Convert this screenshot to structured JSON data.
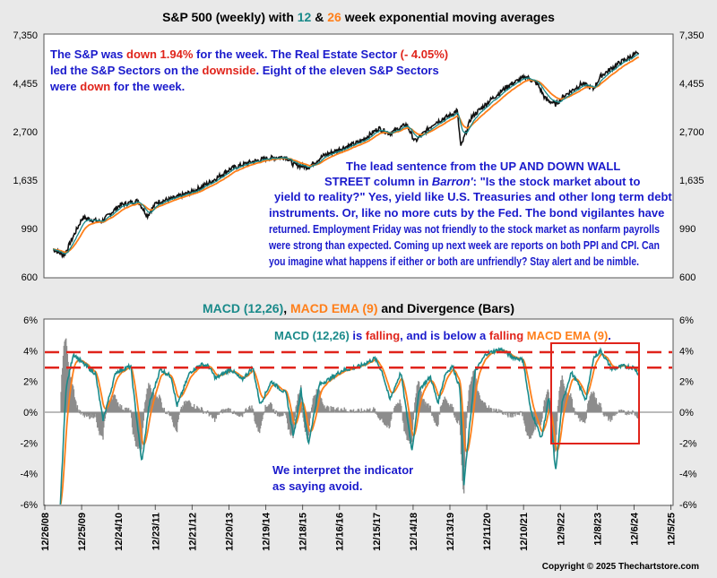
{
  "colors": {
    "ema12": "#1a8a8a",
    "ema26": "#ff7f1a",
    "price": "#111111",
    "highlight_red": "#e0241b",
    "annotation_blue": "#1a1acc",
    "bars": "#8c8c8c",
    "background": "#e9e9e9",
    "panel": "#ffffff"
  },
  "top_title": {
    "part1": "S&P 500 (weekly) with ",
    "n12": "12",
    "part2": " & ",
    "n26": "26",
    "part3": " week exponential moving averages"
  },
  "ann1": {
    "line1_a": "The S&P was ",
    "line1_b": "down 1.94%",
    "line1_c": " for the week. The Real Estate Sector ",
    "line1_d": "(- 4.05%)",
    "line2_a": "led the S&P Sectors on the ",
    "line2_b": "downside",
    "line2_c": ".  Eight of the eleven S&P Sectors",
    "line3_a": "were ",
    "line3_b": "down",
    "line3_c": " for the week."
  },
  "ann2": {
    "line1": "The lead sentence from the UP AND DOWN WALL",
    "line2_a": "STREET column in ",
    "line2_b": "Barron'",
    "line2_c": ": \"Is the stock market about to",
    "line3": "yield to reality?\"  Yes, yield like U.S. Treasuries and other long term debt",
    "line4": "instruments.  Or, like no more cuts by the Fed.  The bond vigilantes have",
    "line5": "returned.  Employment Friday was not friendly to the stock market as nonfarm payrolls",
    "line6": "were strong than expected.  Coming up next week are reports on both PPI and CPI.  Can",
    "line7": "you imagine what happens if either or both are unfriendly?  Stay alert and be nimble."
  },
  "bottom_title": {
    "part1": "MACD (12,26)",
    "part2": ", ",
    "part3": "MACD EMA (9)",
    "part4": " and Divergence (Bars)"
  },
  "ann3": {
    "part1": "MACD (12,26)",
    "part2": " is ",
    "part3": "falling",
    "part4": ", and is below a ",
    "part5": "falling",
    "part6": " ",
    "part7": "MACD EMA (9)",
    "part8": "."
  },
  "ann4": {
    "line1": "We interpret the indicator",
    "line2": "as saying avoid."
  },
  "copyright": "Copyright © 2025 Thechartstore.com",
  "chart_data": [
    {
      "type": "line",
      "title": "S&P 500 (weekly) with 12 & 26 week exponential moving averages",
      "y_scale": "log",
      "ylim": [
        600,
        7350
      ],
      "yticks": [
        600,
        990,
        1635,
        2700,
        4455,
        7350
      ],
      "ytick_labels": [
        "600",
        "990",
        "1,635",
        "2,700",
        "4,455",
        "7,350"
      ],
      "series": [
        {
          "name": "S&P 500",
          "x": [
            2009.2,
            2009.5,
            2010.0,
            2010.5,
            2011.0,
            2011.5,
            2011.75,
            2012.0,
            2012.5,
            2013.0,
            2013.5,
            2014.0,
            2014.5,
            2015.0,
            2015.5,
            2015.7,
            2016.1,
            2016.5,
            2017.0,
            2017.5,
            2018.0,
            2018.3,
            2018.75,
            2018.98,
            2019.5,
            2020.0,
            2020.12,
            2020.22,
            2020.5,
            2021.0,
            2021.5,
            2021.98,
            2022.3,
            2022.5,
            2022.78,
            2023.0,
            2023.5,
            2023.8,
            2024.0,
            2024.5,
            2024.95,
            2025.03
          ],
          "values": [
            800,
            750,
            1110,
            1060,
            1260,
            1320,
            1130,
            1300,
            1360,
            1460,
            1620,
            1840,
            1960,
            2050,
            2080,
            1920,
            1870,
            2100,
            2270,
            2430,
            2800,
            2650,
            2910,
            2440,
            2950,
            3240,
            3380,
            2300,
            3130,
            3720,
            4350,
            4780,
            4400,
            3800,
            3580,
            3900,
            4450,
            4200,
            4800,
            5500,
            6050,
            5940
          ]
        },
        {
          "name": "12",
          "values": "12-week EMA of the S&P 500"
        },
        {
          "name": "26",
          "values": "26-week EMA of the S&P 500"
        }
      ]
    },
    {
      "type": "line",
      "title": "MACD (12,26), MACD EMA (9) and Divergence (Bars)",
      "ylim": [
        -6,
        6
      ],
      "yticks": [
        -6,
        -4,
        -2,
        0,
        2,
        4,
        6
      ],
      "ytick_labels": [
        "-6%",
        "-4%",
        "-2%",
        "0%",
        "2%",
        "4%",
        "6%"
      ],
      "categories": [
        "12/26/08",
        "12/25/09",
        "12/24/10",
        "12/23/11",
        "12/21/12",
        "12/20/13",
        "12/19/14",
        "12/18/15",
        "12/16/16",
        "12/15/17",
        "12/14/18",
        "12/13/19",
        "12/11/20",
        "12/10/21",
        "12/9/22",
        "12/8/23",
        "12/6/24",
        "12/5/25"
      ],
      "reference_lines": [
        3.9,
        2.9
      ],
      "series": [
        {
          "name": "MACD (12,26)",
          "x": [
            2009.4,
            2009.55,
            2009.75,
            2010.0,
            2010.35,
            2010.55,
            2010.9,
            2011.3,
            2011.6,
            2011.8,
            2012.1,
            2012.4,
            2012.55,
            2012.9,
            2013.2,
            2013.4,
            2013.6,
            2014.0,
            2014.3,
            2014.6,
            2014.8,
            2015.1,
            2015.5,
            2015.7,
            2015.9,
            2016.1,
            2016.4,
            2016.7,
            2017.0,
            2017.5,
            2017.9,
            2018.1,
            2018.3,
            2018.6,
            2018.9,
            2019.1,
            2019.4,
            2019.6,
            2019.8,
            2020.0,
            2020.2,
            2020.3,
            2020.6,
            2020.9,
            2021.3,
            2021.6,
            2021.9,
            2022.1,
            2022.4,
            2022.6,
            2022.78,
            2022.95,
            2023.2,
            2023.4,
            2023.6,
            2023.8,
            2024.0,
            2024.3,
            2024.6,
            2024.9,
            2025.02
          ],
          "values": [
            -6.0,
            1.5,
            3.8,
            3.2,
            2.5,
            -0.5,
            2.6,
            3.0,
            -3.3,
            0.5,
            2.8,
            2.3,
            0.4,
            2.6,
            3.1,
            3.0,
            2.2,
            2.8,
            2.1,
            2.9,
            0.5,
            2.0,
            1.2,
            -1.6,
            1.5,
            -2.1,
            1.8,
            2.2,
            2.7,
            3.0,
            3.5,
            2.6,
            0.8,
            2.6,
            -2.5,
            1.5,
            2.3,
            0.6,
            2.5,
            3.0,
            1.5,
            -4.8,
            2.6,
            3.8,
            4.1,
            3.6,
            3.4,
            0.2,
            -1.7,
            1.0,
            -3.9,
            0.5,
            2.6,
            1.8,
            0.8,
            3.5,
            4.0,
            2.8,
            3.0,
            2.9,
            2.5
          ]
        },
        {
          "name": "MACD EMA (9)",
          "values": "9-week EMA of MACD (12,26)"
        },
        {
          "name": "Divergence (Bars)",
          "values": "MACD (12,26) minus MACD EMA (9)"
        }
      ]
    }
  ]
}
